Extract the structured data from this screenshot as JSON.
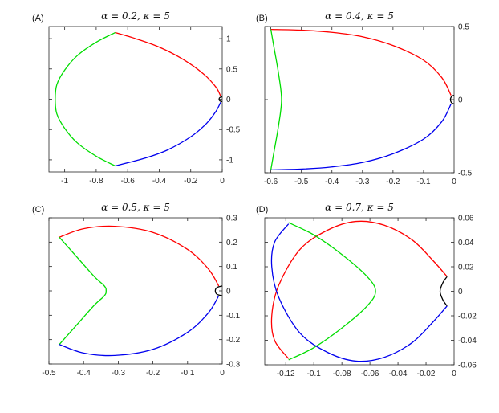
{
  "chart_data": [
    {
      "type": "line",
      "panel_label": "(A)",
      "title": "α = 0.2, κ = 5",
      "xlim": [
        -1.1,
        0.0
      ],
      "ylim": [
        -1.2,
        1.2
      ],
      "x_ticks": [
        -1,
        -0.8,
        -0.6,
        -0.4,
        -0.2,
        0
      ],
      "x_tick_labels": [
        "-1",
        "-0.8",
        "-0.6",
        "-0.4",
        "-0.2",
        "0"
      ],
      "y_ticks": [
        1,
        0.5,
        0,
        -0.5,
        -1
      ],
      "y_tick_labels": [
        "1",
        "0.5",
        "0",
        "-0.5",
        "-1"
      ],
      "y_axis_side": "right",
      "grid": false,
      "series": [
        {
          "color": "#ff0000",
          "x": [
            -0.68,
            -0.55,
            -0.4,
            -0.25,
            -0.12,
            -0.04,
            -0.01
          ],
          "y": [
            1.1,
            1.0,
            0.86,
            0.66,
            0.42,
            0.2,
            0.05
          ]
        },
        {
          "color": "#00dd00",
          "x": [
            -0.68,
            -0.8,
            -0.92,
            -1.0,
            -1.05,
            -1.06,
            -1.05,
            -1.0,
            -0.92,
            -0.8,
            -0.68
          ],
          "y": [
            1.1,
            0.94,
            0.72,
            0.48,
            0.24,
            0.0,
            -0.24,
            -0.48,
            -0.72,
            -0.94,
            -1.1
          ]
        },
        {
          "color": "#0000ee",
          "x": [
            -0.01,
            -0.04,
            -0.1,
            -0.2,
            -0.35,
            -0.5,
            -0.68
          ],
          "y": [
            -0.05,
            -0.2,
            -0.4,
            -0.62,
            -0.84,
            -0.98,
            -1.1
          ]
        },
        {
          "color": "#000000",
          "x": [
            0.0,
            -0.015,
            -0.02,
            -0.015,
            0.0
          ],
          "y": [
            0.04,
            0.028,
            0.0,
            -0.028,
            -0.04
          ]
        }
      ]
    },
    {
      "type": "line",
      "panel_label": "(B)",
      "title": "α = 0.4, κ = 5",
      "xlim": [
        -0.62,
        0.0
      ],
      "ylim": [
        -0.5,
        0.5
      ],
      "x_ticks": [
        -0.6,
        -0.5,
        -0.4,
        -0.3,
        -0.2,
        -0.1,
        0
      ],
      "x_tick_labels": [
        "-0.6",
        "-0.5",
        "-0.4",
        "-0.3",
        "-0.2",
        "-0.1",
        "0"
      ],
      "y_ticks": [
        0.5,
        0,
        -0.5
      ],
      "y_tick_labels": [
        "0.5",
        "0",
        "-0.5"
      ],
      "y_axis_side": "right",
      "grid": false,
      "series": [
        {
          "color": "#ff0000",
          "x": [
            -0.6,
            -0.5,
            -0.4,
            -0.3,
            -0.2,
            -0.1,
            -0.04,
            -0.01
          ],
          "y": [
            0.48,
            0.475,
            0.46,
            0.43,
            0.37,
            0.27,
            0.15,
            0.03
          ]
        },
        {
          "color": "#00dd00",
          "x": [
            -0.6,
            -0.59,
            -0.575,
            -0.565,
            -0.575,
            -0.59,
            -0.6
          ],
          "y": [
            0.48,
            0.36,
            0.18,
            0.0,
            -0.18,
            -0.36,
            -0.48
          ]
        },
        {
          "color": "#0000ee",
          "x": [
            -0.01,
            -0.04,
            -0.1,
            -0.2,
            -0.3,
            -0.4,
            -0.5,
            -0.6
          ],
          "y": [
            -0.03,
            -0.15,
            -0.27,
            -0.37,
            -0.43,
            -0.46,
            -0.475,
            -0.48
          ]
        },
        {
          "color": "#000000",
          "x": [
            0.0,
            -0.008,
            -0.012,
            -0.008,
            0.0
          ],
          "y": [
            0.03,
            0.022,
            0.0,
            -0.022,
            -0.03
          ]
        }
      ]
    },
    {
      "type": "line",
      "panel_label": "(C)",
      "title": "α = 0.5, κ = 5",
      "xlim": [
        -0.5,
        0.0
      ],
      "ylim": [
        -0.3,
        0.3
      ],
      "x_ticks": [
        -0.5,
        -0.4,
        -0.3,
        -0.2,
        -0.1,
        0
      ],
      "x_tick_labels": [
        "-0.5",
        "-0.4",
        "-0.3",
        "-0.2",
        "-0.1",
        "0"
      ],
      "y_ticks": [
        0.3,
        0.2,
        0.1,
        0,
        -0.1,
        -0.2,
        -0.3
      ],
      "y_tick_labels": [
        "0.3",
        "0.2",
        "0.1",
        "0",
        "-0.1",
        "-0.2",
        "-0.3"
      ],
      "y_axis_side": "right",
      "grid": false,
      "series": [
        {
          "color": "#ff0000",
          "x": [
            -0.47,
            -0.4,
            -0.31,
            -0.2,
            -0.1,
            -0.04,
            -0.01
          ],
          "y": [
            0.22,
            0.255,
            0.265,
            0.24,
            0.17,
            0.09,
            0.02
          ]
        },
        {
          "color": "#00dd00",
          "x": [
            -0.47,
            -0.42,
            -0.37,
            -0.34,
            -0.335,
            -0.34,
            -0.37,
            -0.42,
            -0.47
          ],
          "y": [
            0.22,
            0.14,
            0.06,
            0.02,
            0.0,
            -0.02,
            -0.06,
            -0.14,
            -0.22
          ]
        },
        {
          "color": "#0000ee",
          "x": [
            -0.01,
            -0.04,
            -0.1,
            -0.2,
            -0.31,
            -0.4,
            -0.47
          ],
          "y": [
            -0.02,
            -0.09,
            -0.17,
            -0.24,
            -0.265,
            -0.255,
            -0.22
          ]
        },
        {
          "color": "#000000",
          "x": [
            0.0,
            -0.015,
            -0.02,
            -0.015,
            0.0
          ],
          "y": [
            0.02,
            0.014,
            0.0,
            -0.014,
            -0.02
          ]
        }
      ]
    },
    {
      "type": "line",
      "panel_label": "(D)",
      "title": "α = 0.7, κ = 5",
      "xlim": [
        -0.135,
        0.0
      ],
      "ylim": [
        -0.06,
        0.06
      ],
      "x_ticks": [
        -0.12,
        -0.1,
        -0.08,
        -0.06,
        -0.04,
        -0.02,
        0
      ],
      "x_tick_labels": [
        "-0.12",
        "-0.1",
        "-0.08",
        "-0.06",
        "-0.04",
        "-0.02",
        "0"
      ],
      "y_ticks": [
        0.06,
        0.04,
        0.02,
        0,
        -0.02,
        -0.04,
        -0.06
      ],
      "y_tick_labels": [
        "0.06",
        "0.04",
        "0.02",
        "0",
        "-0.02",
        "-0.04",
        "-0.06"
      ],
      "y_axis_side": "right",
      "grid": false,
      "series": [
        {
          "color": "#ff0000",
          "x": [
            -0.005,
            -0.015,
            -0.03,
            -0.05,
            -0.07,
            -0.09,
            -0.11,
            -0.125,
            -0.13,
            -0.128,
            -0.118
          ],
          "y": [
            0.012,
            0.025,
            0.042,
            0.054,
            0.057,
            0.05,
            0.034,
            0.005,
            -0.02,
            -0.04,
            -0.055
          ]
        },
        {
          "color": "#00dd00",
          "x": [
            -0.118,
            -0.1,
            -0.08,
            -0.062,
            -0.056,
            -0.062,
            -0.08,
            -0.1,
            -0.118
          ],
          "y": [
            0.056,
            0.046,
            0.03,
            0.012,
            0.0,
            -0.012,
            -0.03,
            -0.046,
            -0.056
          ]
        },
        {
          "color": "#0000ee",
          "x": [
            -0.005,
            -0.015,
            -0.03,
            -0.05,
            -0.07,
            -0.09,
            -0.11,
            -0.125,
            -0.13,
            -0.128,
            -0.118
          ],
          "y": [
            -0.012,
            -0.025,
            -0.042,
            -0.054,
            -0.057,
            -0.05,
            -0.034,
            -0.005,
            0.02,
            0.04,
            0.055
          ]
        },
        {
          "color": "#000000",
          "x": [
            -0.005,
            -0.008,
            -0.01,
            -0.008,
            -0.005
          ],
          "y": [
            0.012,
            0.007,
            0.0,
            -0.007,
            -0.012
          ]
        }
      ]
    }
  ]
}
